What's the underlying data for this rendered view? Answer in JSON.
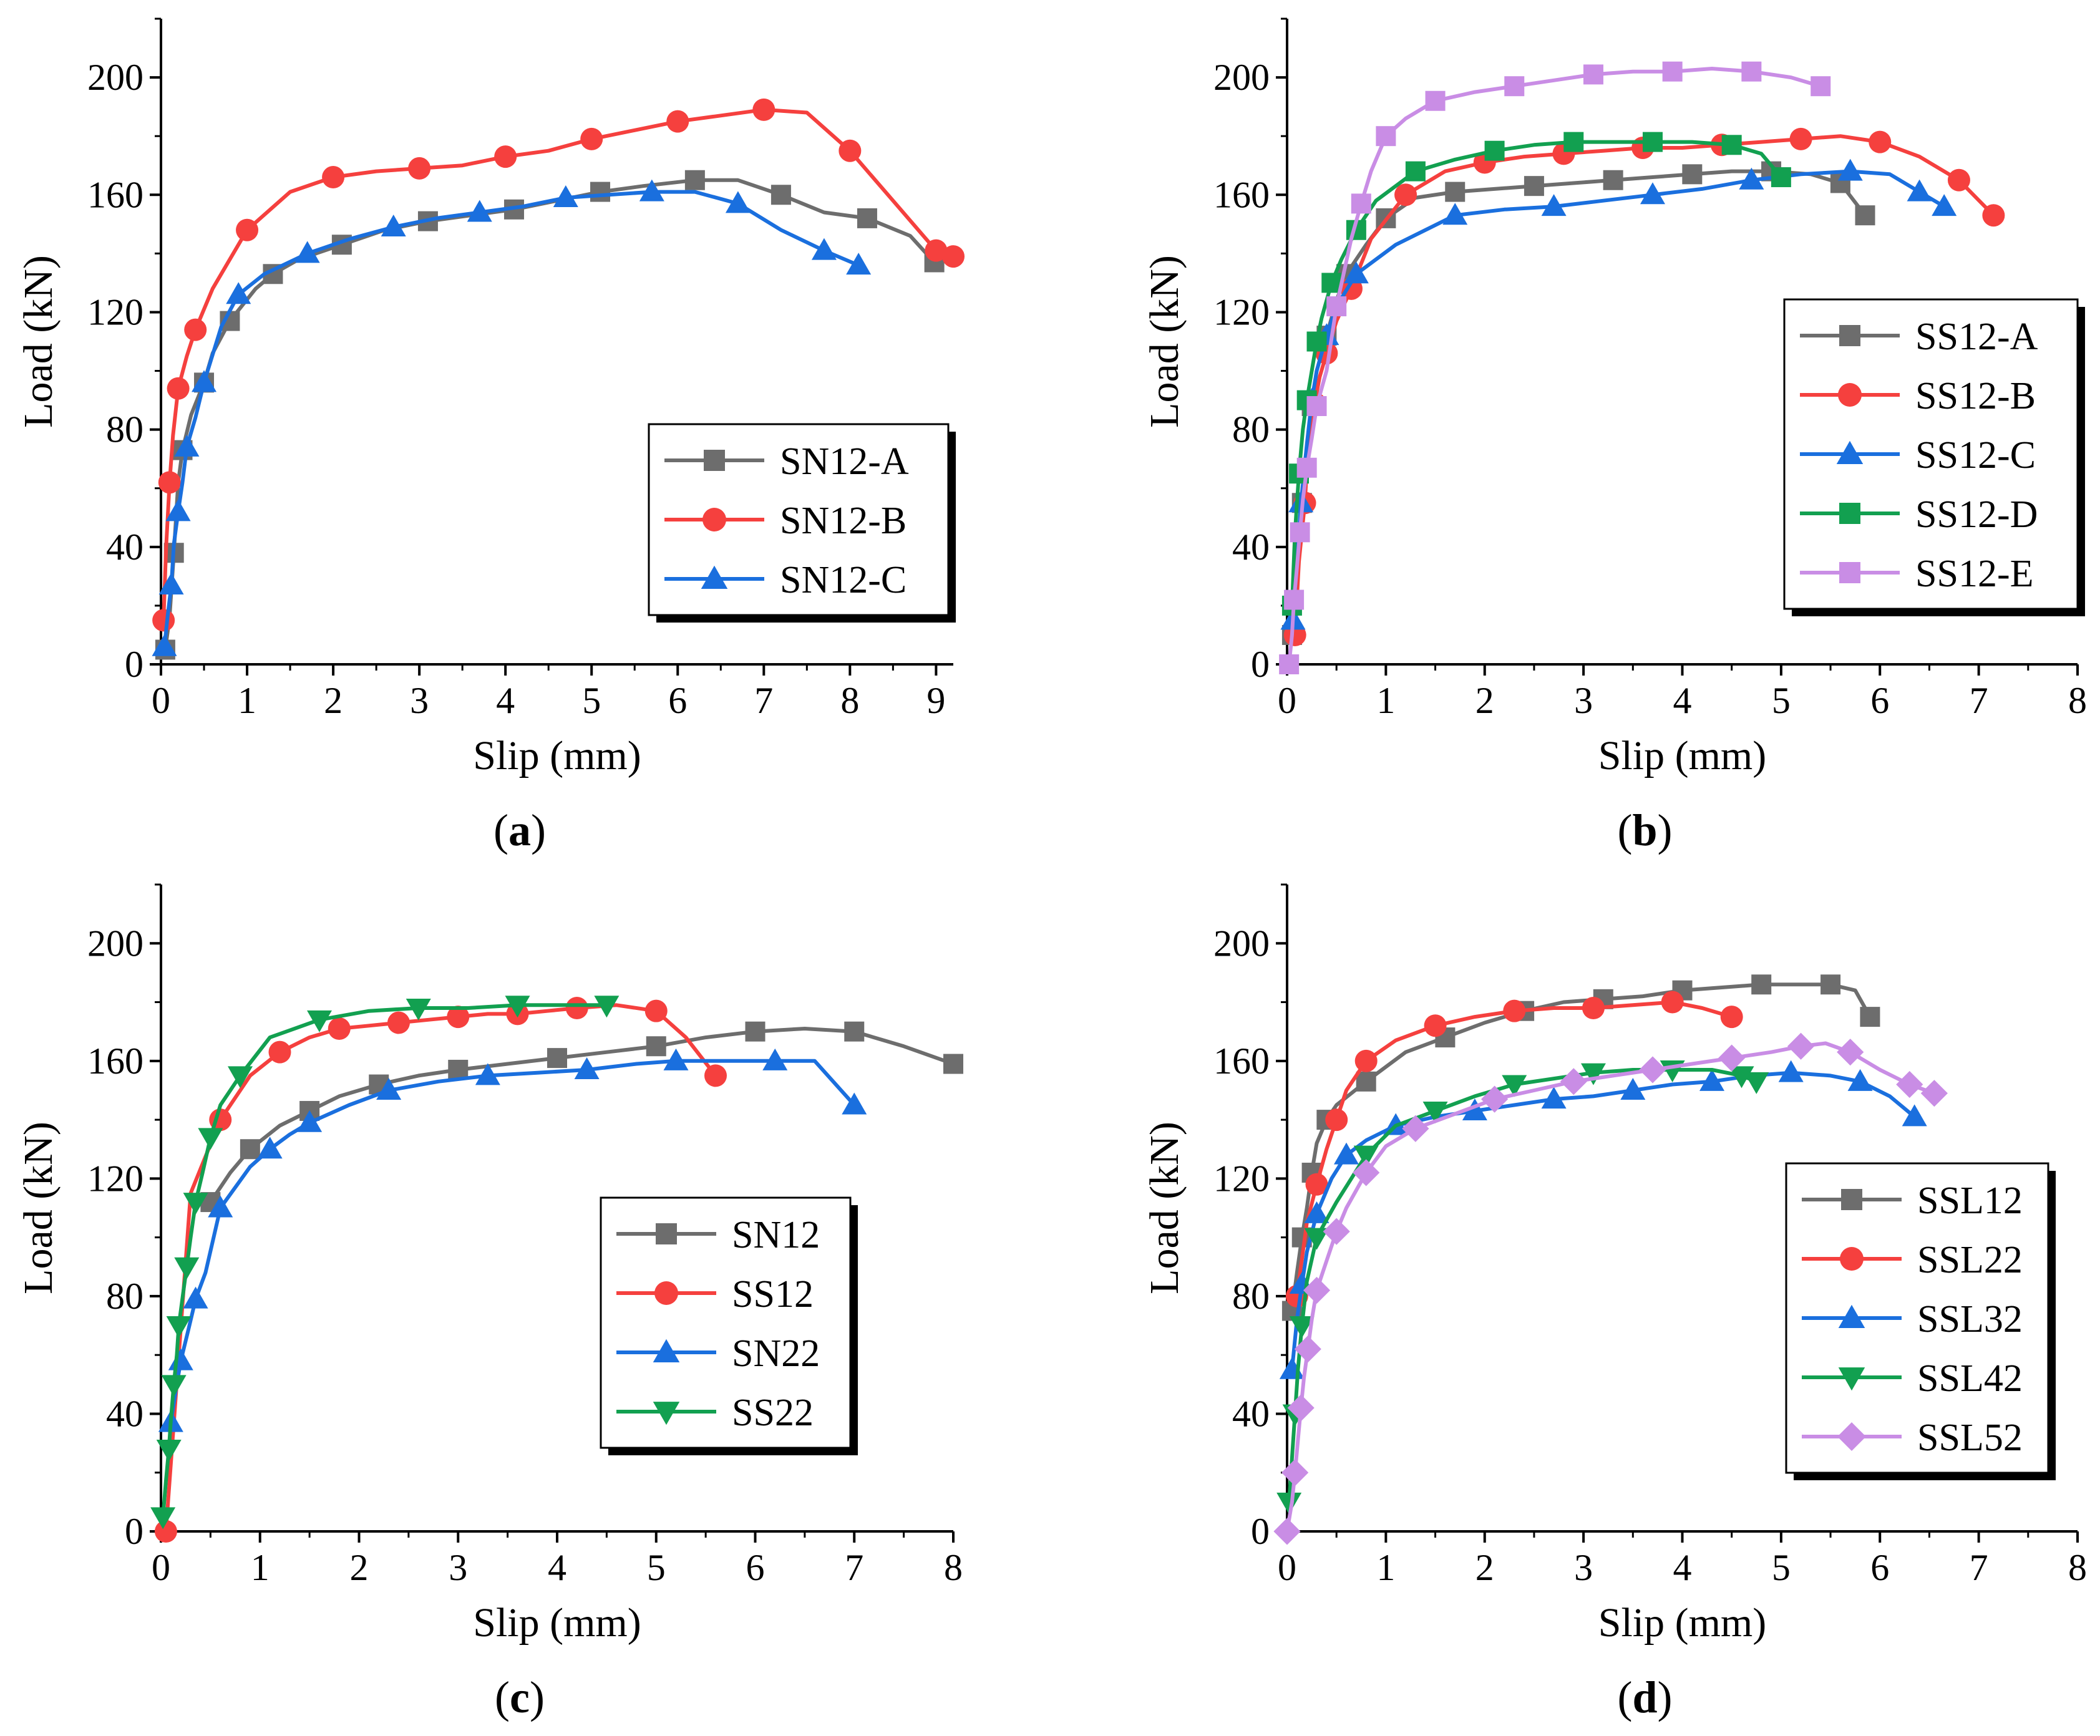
{
  "chart_data": [
    {
      "type": "line",
      "caption": "a",
      "xlabel": "Slip (mm)",
      "ylabel": "Load (kN)",
      "xlim": [
        0,
        9.2
      ],
      "ylim": [
        0,
        220
      ],
      "xticks": [
        0,
        1,
        2,
        3,
        4,
        5,
        6,
        7,
        8,
        9
      ],
      "yticks": [
        0,
        40,
        80,
        120,
        160,
        200
      ],
      "legend_position": "bottom-right",
      "series": [
        {
          "name": "SN12-A",
          "color": "#6d6d6d",
          "marker": "square",
          "x": [
            0.05,
            0.1,
            0.15,
            0.2,
            0.25,
            0.35,
            0.5,
            0.6,
            0.8,
            1.1,
            1.3,
            1.6,
            2.1,
            2.6,
            3.1,
            3.6,
            4.1,
            4.6,
            5.1,
            5.6,
            6.2,
            6.7,
            7.2,
            7.7,
            8.2,
            8.7,
            8.98
          ],
          "y": [
            5,
            16,
            38,
            62,
            73,
            85,
            96,
            106,
            117,
            128,
            133,
            138,
            143,
            148,
            151,
            153,
            155,
            158,
            161,
            163,
            165,
            165,
            160,
            154,
            152,
            146,
            137
          ]
        },
        {
          "name": "SN12-B",
          "color": "#f5403e",
          "marker": "circle",
          "x": [
            0.03,
            0.06,
            0.1,
            0.14,
            0.2,
            0.3,
            0.4,
            0.6,
            1.0,
            1.5,
            2.0,
            2.5,
            3.0,
            3.5,
            4.0,
            4.5,
            5.0,
            5.5,
            6.0,
            6.5,
            7.0,
            7.5,
            8.0,
            8.5,
            9.0,
            9.2
          ],
          "y": [
            15,
            40,
            62,
            78,
            94,
            105,
            114,
            128,
            148,
            161,
            166,
            168,
            169,
            170,
            173,
            175,
            179,
            182,
            185,
            187,
            189,
            188,
            175,
            158,
            141,
            139
          ]
        },
        {
          "name": "SN12-C",
          "color": "#1a6fde",
          "marker": "triangle",
          "x": [
            0.04,
            0.08,
            0.12,
            0.15,
            0.2,
            0.25,
            0.3,
            0.4,
            0.5,
            0.7,
            0.9,
            1.2,
            1.7,
            2.2,
            2.7,
            3.2,
            3.7,
            4.2,
            4.7,
            5.2,
            5.7,
            6.2,
            6.7,
            7.2,
            7.7,
            8.1
          ],
          "y": [
            6,
            17,
            27,
            41,
            52,
            62,
            74,
            84,
            96,
            115,
            126,
            133,
            140,
            145,
            149,
            152,
            154,
            156,
            159,
            160,
            161,
            161,
            157,
            148,
            141,
            136
          ]
        }
      ]
    },
    {
      "type": "line",
      "caption": "b",
      "xlabel": "Slip (mm)",
      "ylabel": "Load (kN)",
      "xlim": [
        0,
        8
      ],
      "ylim": [
        0,
        220
      ],
      "xticks": [
        0,
        1,
        2,
        3,
        4,
        5,
        6,
        7,
        8
      ],
      "yticks": [
        0,
        40,
        80,
        120,
        160,
        200
      ],
      "legend_position": "right",
      "series": [
        {
          "name": "SS12-A",
          "color": "#6d6d6d",
          "marker": "square",
          "x": [
            0.05,
            0.1,
            0.15,
            0.2,
            0.25,
            0.3,
            0.4,
            0.5,
            0.6,
            0.8,
            1.0,
            1.3,
            1.7,
            2.1,
            2.5,
            2.9,
            3.3,
            3.7,
            4.1,
            4.5,
            4.9,
            5.3,
            5.6,
            5.85
          ],
          "y": [
            10,
            35,
            55,
            72,
            88,
            100,
            112,
            124,
            133,
            143,
            152,
            159,
            161,
            162,
            163,
            164,
            165,
            166,
            167,
            168,
            168,
            167,
            164,
            153
          ]
        },
        {
          "name": "SS12-B",
          "color": "#f5403e",
          "marker": "circle",
          "x": [
            0.08,
            0.12,
            0.18,
            0.22,
            0.28,
            0.33,
            0.4,
            0.5,
            0.65,
            0.85,
            1.2,
            1.6,
            2.0,
            2.4,
            2.8,
            3.2,
            3.6,
            4.0,
            4.4,
            4.8,
            5.2,
            5.6,
            6.0,
            6.4,
            6.8,
            7.15
          ],
          "y": [
            10,
            35,
            55,
            78,
            89,
            98,
            106,
            117,
            128,
            145,
            160,
            168,
            171,
            173,
            174,
            175,
            176,
            176,
            177,
            178,
            179,
            180,
            178,
            173,
            165,
            153
          ]
        },
        {
          "name": "SS12-C",
          "color": "#1a6fde",
          "marker": "triangle",
          "x": [
            0.06,
            0.1,
            0.14,
            0.2,
            0.25,
            0.3,
            0.4,
            0.5,
            0.7,
            1.1,
            1.7,
            2.2,
            2.7,
            3.2,
            3.7,
            4.2,
            4.7,
            5.2,
            5.7,
            6.1,
            6.4,
            6.65
          ],
          "y": [
            15,
            35,
            55,
            75,
            90,
            100,
            112,
            122,
            133,
            143,
            153,
            155,
            156,
            158,
            160,
            162,
            165,
            167,
            168,
            167,
            161,
            156
          ]
        },
        {
          "name": "SS12-D",
          "color": "#12a050",
          "marker": "square",
          "x": [
            0.05,
            0.08,
            0.12,
            0.16,
            0.2,
            0.25,
            0.3,
            0.35,
            0.45,
            0.55,
            0.7,
            0.9,
            1.3,
            1.7,
            2.1,
            2.5,
            2.9,
            3.3,
            3.7,
            4.1,
            4.5,
            4.8,
            5.0
          ],
          "y": [
            20,
            45,
            65,
            80,
            90,
            100,
            110,
            118,
            130,
            138,
            148,
            158,
            168,
            172,
            175,
            177,
            178,
            178,
            178,
            178,
            177,
            174,
            166
          ]
        },
        {
          "name": "SS12-E",
          "color": "#c98de5",
          "marker": "square",
          "x": [
            0.02,
            0.05,
            0.07,
            0.1,
            0.13,
            0.16,
            0.2,
            0.25,
            0.3,
            0.4,
            0.5,
            0.65,
            0.75,
            0.85,
            1.0,
            1.2,
            1.5,
            1.9,
            2.3,
            2.7,
            3.1,
            3.5,
            3.9,
            4.3,
            4.7,
            5.1,
            5.4
          ],
          "y": [
            0,
            10,
            22,
            33,
            45,
            56,
            67,
            77,
            88,
            100,
            122,
            145,
            157,
            168,
            180,
            186,
            192,
            195,
            197,
            199,
            201,
            202,
            202,
            203,
            202,
            200,
            197
          ]
        }
      ]
    },
    {
      "type": "line",
      "caption": "c",
      "xlabel": "Slip (mm)",
      "ylabel": "Load (kN)",
      "xlim": [
        0,
        8
      ],
      "ylim": [
        0,
        220
      ],
      "xticks": [
        0,
        1,
        2,
        3,
        4,
        5,
        6,
        7,
        8
      ],
      "yticks": [
        0,
        40,
        80,
        120,
        160,
        200
      ],
      "legend_position": "center-right",
      "series": [
        {
          "name": "SN12",
          "color": "#6d6d6d",
          "marker": "square",
          "x": [
            0.5,
            0.7,
            0.9,
            1.2,
            1.5,
            1.8,
            2.2,
            2.6,
            3.0,
            3.5,
            4.0,
            4.5,
            5.0,
            5.5,
            6.0,
            6.5,
            7.0,
            7.5,
            8.0
          ],
          "y": [
            112,
            122,
            130,
            138,
            143,
            148,
            152,
            155,
            157,
            159,
            161,
            163,
            165,
            168,
            170,
            171,
            170,
            165,
            159
          ]
        },
        {
          "name": "SS12",
          "color": "#f5403e",
          "marker": "circle",
          "x": [
            0.05,
            0.3,
            0.6,
            0.9,
            1.2,
            1.5,
            1.8,
            2.1,
            2.4,
            2.7,
            3.0,
            3.3,
            3.6,
            3.9,
            4.2,
            4.6,
            5.0,
            5.3,
            5.6
          ],
          "y": [
            0,
            115,
            140,
            155,
            163,
            168,
            171,
            172,
            173,
            174,
            175,
            176,
            176,
            177,
            178,
            179,
            177,
            168,
            155
          ]
        },
        {
          "name": "SN22",
          "color": "#1a6fde",
          "marker": "triangle",
          "x": [
            0.1,
            0.15,
            0.2,
            0.28,
            0.35,
            0.45,
            0.6,
            0.9,
            1.1,
            1.3,
            1.5,
            1.9,
            2.3,
            2.8,
            3.3,
            3.8,
            4.3,
            4.8,
            5.2,
            5.7,
            6.2,
            6.6,
            7.0
          ],
          "y": [
            37,
            48,
            58,
            69,
            79,
            88,
            110,
            124,
            130,
            135,
            139,
            145,
            150,
            153,
            155,
            156,
            157,
            159,
            160,
            160,
            160,
            160,
            145
          ]
        },
        {
          "name": "SS22",
          "color": "#12a050",
          "marker": "triangle-down",
          "x": [
            0.02,
            0.05,
            0.08,
            0.1,
            0.13,
            0.16,
            0.18,
            0.22,
            0.26,
            0.3,
            0.35,
            0.42,
            0.5,
            0.6,
            0.8,
            1.1,
            1.6,
            2.1,
            2.6,
            3.1,
            3.6,
            4.1,
            4.5
          ],
          "y": [
            5,
            17,
            28,
            38,
            50,
            60,
            70,
            80,
            90,
            100,
            112,
            122,
            134,
            145,
            155,
            168,
            174,
            177,
            178,
            178,
            179,
            179,
            179
          ]
        }
      ]
    },
    {
      "type": "line",
      "caption": "d",
      "xlabel": "Slip (mm)",
      "ylabel": "Load (kN)",
      "xlim": [
        0,
        8
      ],
      "ylim": [
        0,
        220
      ],
      "xticks": [
        0,
        1,
        2,
        3,
        4,
        5,
        6,
        7,
        8
      ],
      "yticks": [
        0,
        40,
        80,
        120,
        160,
        200
      ],
      "legend_position": "right",
      "series": [
        {
          "name": "SSL12",
          "color": "#6d6d6d",
          "marker": "square",
          "x": [
            0.05,
            0.1,
            0.15,
            0.2,
            0.25,
            0.3,
            0.4,
            0.5,
            0.8,
            1.2,
            1.6,
            2.0,
            2.4,
            2.8,
            3.2,
            3.6,
            4.0,
            4.4,
            4.8,
            5.2,
            5.5,
            5.75,
            5.9
          ],
          "y": [
            75,
            88,
            100,
            110,
            122,
            132,
            140,
            145,
            153,
            163,
            168,
            173,
            177,
            180,
            181,
            182,
            184,
            185,
            186,
            186,
            186,
            184,
            175
          ]
        },
        {
          "name": "SSL22",
          "color": "#f5403e",
          "marker": "circle",
          "x": [
            0.1,
            0.2,
            0.3,
            0.4,
            0.5,
            0.6,
            0.8,
            1.1,
            1.5,
            1.9,
            2.3,
            2.7,
            3.1,
            3.5,
            3.9,
            4.2,
            4.5
          ],
          "y": [
            80,
            105,
            118,
            130,
            140,
            150,
            160,
            167,
            172,
            175,
            177,
            178,
            178,
            179,
            180,
            178,
            175
          ]
        },
        {
          "name": "SSL32",
          "color": "#1a6fde",
          "marker": "triangle",
          "x": [
            0.05,
            0.1,
            0.15,
            0.2,
            0.3,
            0.45,
            0.6,
            0.8,
            1.1,
            1.5,
            1.9,
            2.3,
            2.7,
            3.1,
            3.5,
            3.9,
            4.3,
            4.7,
            5.1,
            5.5,
            5.8,
            6.1,
            6.35
          ],
          "y": [
            55,
            72,
            84,
            95,
            108,
            120,
            128,
            133,
            138,
            141,
            143,
            145,
            147,
            148,
            150,
            152,
            153,
            155,
            156,
            155,
            153,
            148,
            141
          ]
        },
        {
          "name": "SSL42",
          "color": "#12a050",
          "marker": "triangle-down",
          "x": [
            0.02,
            0.05,
            0.08,
            0.11,
            0.15,
            0.2,
            0.3,
            0.5,
            0.8,
            1.1,
            1.5,
            1.9,
            2.3,
            2.7,
            3.1,
            3.5,
            3.9,
            4.3,
            4.6,
            4.75
          ],
          "y": [
            10,
            25,
            40,
            55,
            70,
            85,
            100,
            112,
            128,
            138,
            143,
            148,
            152,
            154,
            156,
            157,
            157,
            157,
            155,
            153
          ]
        },
        {
          "name": "SSL52",
          "color": "#c98de5",
          "marker": "diamond",
          "x": [
            0.0,
            0.05,
            0.08,
            0.11,
            0.14,
            0.17,
            0.21,
            0.25,
            0.3,
            0.4,
            0.5,
            0.6,
            0.8,
            1.0,
            1.3,
            1.7,
            2.1,
            2.5,
            2.9,
            3.3,
            3.7,
            4.1,
            4.5,
            4.9,
            5.2,
            5.45,
            5.7,
            6.0,
            6.3,
            6.55
          ],
          "y": [
            0,
            10,
            20,
            31,
            42,
            52,
            62,
            72,
            82,
            92,
            102,
            110,
            122,
            131,
            137,
            142,
            147,
            150,
            153,
            155,
            157,
            159,
            161,
            163,
            165,
            166,
            163,
            157,
            152,
            149
          ]
        }
      ]
    }
  ]
}
